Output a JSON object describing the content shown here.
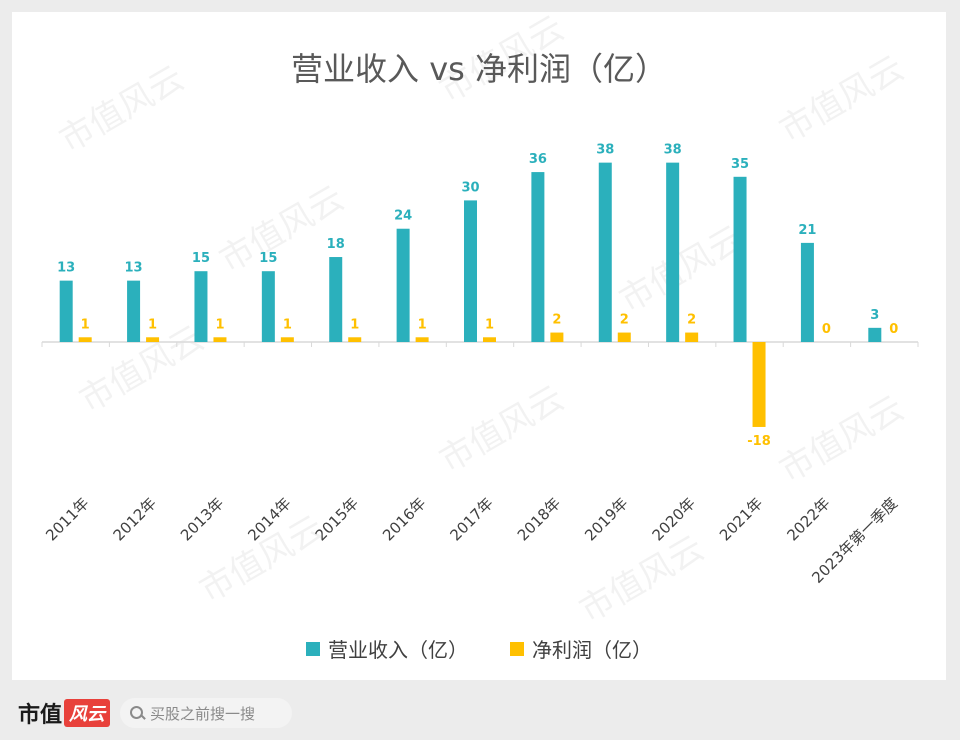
{
  "chart_data": {
    "type": "bar",
    "title": "营业收入 vs 净利润（亿）",
    "categories": [
      "2011年",
      "2012年",
      "2013年",
      "2014年",
      "2015年",
      "2016年",
      "2017年",
      "2018年",
      "2019年",
      "2020年",
      "2021年",
      "2022年",
      "2023年第一季度"
    ],
    "series": [
      {
        "name": "营业收入（亿）",
        "color": "#2bb0bc",
        "values": [
          13,
          13,
          15,
          15,
          18,
          24,
          30,
          36,
          38,
          38,
          35,
          21,
          3
        ]
      },
      {
        "name": "净利润（亿）",
        "color": "#ffc000",
        "values": [
          1,
          1,
          1,
          1,
          1,
          1,
          1,
          2,
          2,
          2,
          -18,
          0,
          0
        ]
      }
    ],
    "ylim": [
      -40,
      45
    ],
    "grid": false,
    "legend": "bottom"
  },
  "watermark": "市值风云",
  "footer": {
    "brand": "市值",
    "brand_badge": "风云",
    "search_placeholder": "买股之前搜一搜",
    "search_icon": "search-icon"
  }
}
